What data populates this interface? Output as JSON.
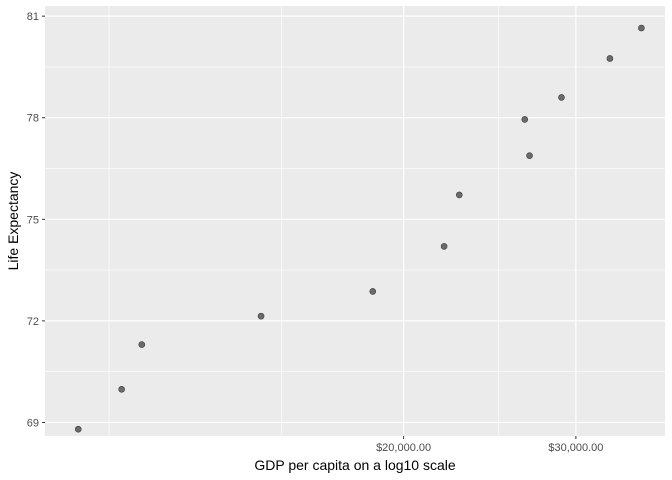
{
  "chart_data": {
    "type": "scatter",
    "title": "",
    "xlabel": "GDP per capita on a log10 scale",
    "ylabel": "Life Expectancy",
    "x_scale": "log10",
    "x_ticks": [
      {
        "value": 20000,
        "label": "$20,000.00"
      },
      {
        "value": 30000,
        "label": "$30,000.00"
      }
    ],
    "x_minor_ticks": [
      10000,
      15000,
      25000
    ],
    "xlim": [
      8600,
      37000
    ],
    "y_ticks": [
      {
        "value": 69,
        "label": "69"
      },
      {
        "value": 72,
        "label": "72"
      },
      {
        "value": 75,
        "label": "75"
      },
      {
        "value": 78,
        "label": "78"
      },
      {
        "value": 81,
        "label": "81"
      }
    ],
    "ylim": [
      68.6,
      81.3
    ],
    "grid": true,
    "points": [
      {
        "x": 9300,
        "y": 68.8
      },
      {
        "x": 10300,
        "y": 69.98
      },
      {
        "x": 10800,
        "y": 71.3
      },
      {
        "x": 14300,
        "y": 72.14
      },
      {
        "x": 18600,
        "y": 72.87
      },
      {
        "x": 22000,
        "y": 74.2
      },
      {
        "x": 22800,
        "y": 75.72
      },
      {
        "x": 26600,
        "y": 77.95
      },
      {
        "x": 26900,
        "y": 76.88
      },
      {
        "x": 29000,
        "y": 78.6
      },
      {
        "x": 32500,
        "y": 79.75
      },
      {
        "x": 35000,
        "y": 80.65
      }
    ],
    "colors": {
      "panel": "#ebebeb",
      "grid_major": "#ffffff",
      "grid_minor": "#f5f5f5",
      "point": "#6b6b6b"
    }
  }
}
